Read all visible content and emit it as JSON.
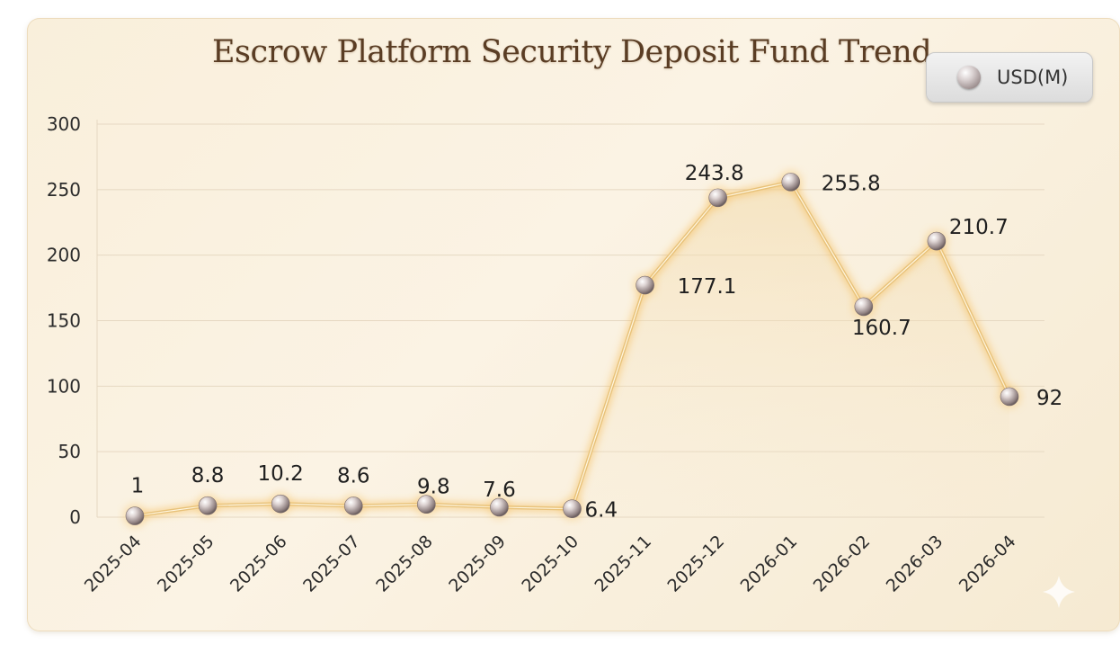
{
  "chart_data": {
    "type": "line",
    "title": "Escrow Platform Security Deposit Fund Trend",
    "xlabel": "",
    "ylabel": "",
    "ylim": [
      0,
      300
    ],
    "yticks": [
      0,
      50,
      100,
      150,
      200,
      250,
      300
    ],
    "categories": [
      "2025-04",
      "2025-05",
      "2025-06",
      "2025-07",
      "2025-08",
      "2025-09",
      "2025-10",
      "2025-11",
      "2025-12",
      "2026-01",
      "2026-02",
      "2026-03",
      "2026-04"
    ],
    "series": [
      {
        "name": "USD(M)",
        "values": [
          1,
          8.8,
          10.2,
          8.6,
          9.8,
          7.6,
          6.4,
          177.1,
          243.8,
          255.8,
          160.7,
          210.7,
          92
        ],
        "labels": [
          "1",
          "8.8",
          "10.2",
          "8.6",
          "9.8",
          "7.6",
          "6.4",
          "177.1",
          "243.8",
          "255.8",
          "160.7",
          "210.7",
          "92"
        ],
        "color": "#e8c27a"
      }
    ],
    "grid": true,
    "legend_position": "top-right"
  }
}
